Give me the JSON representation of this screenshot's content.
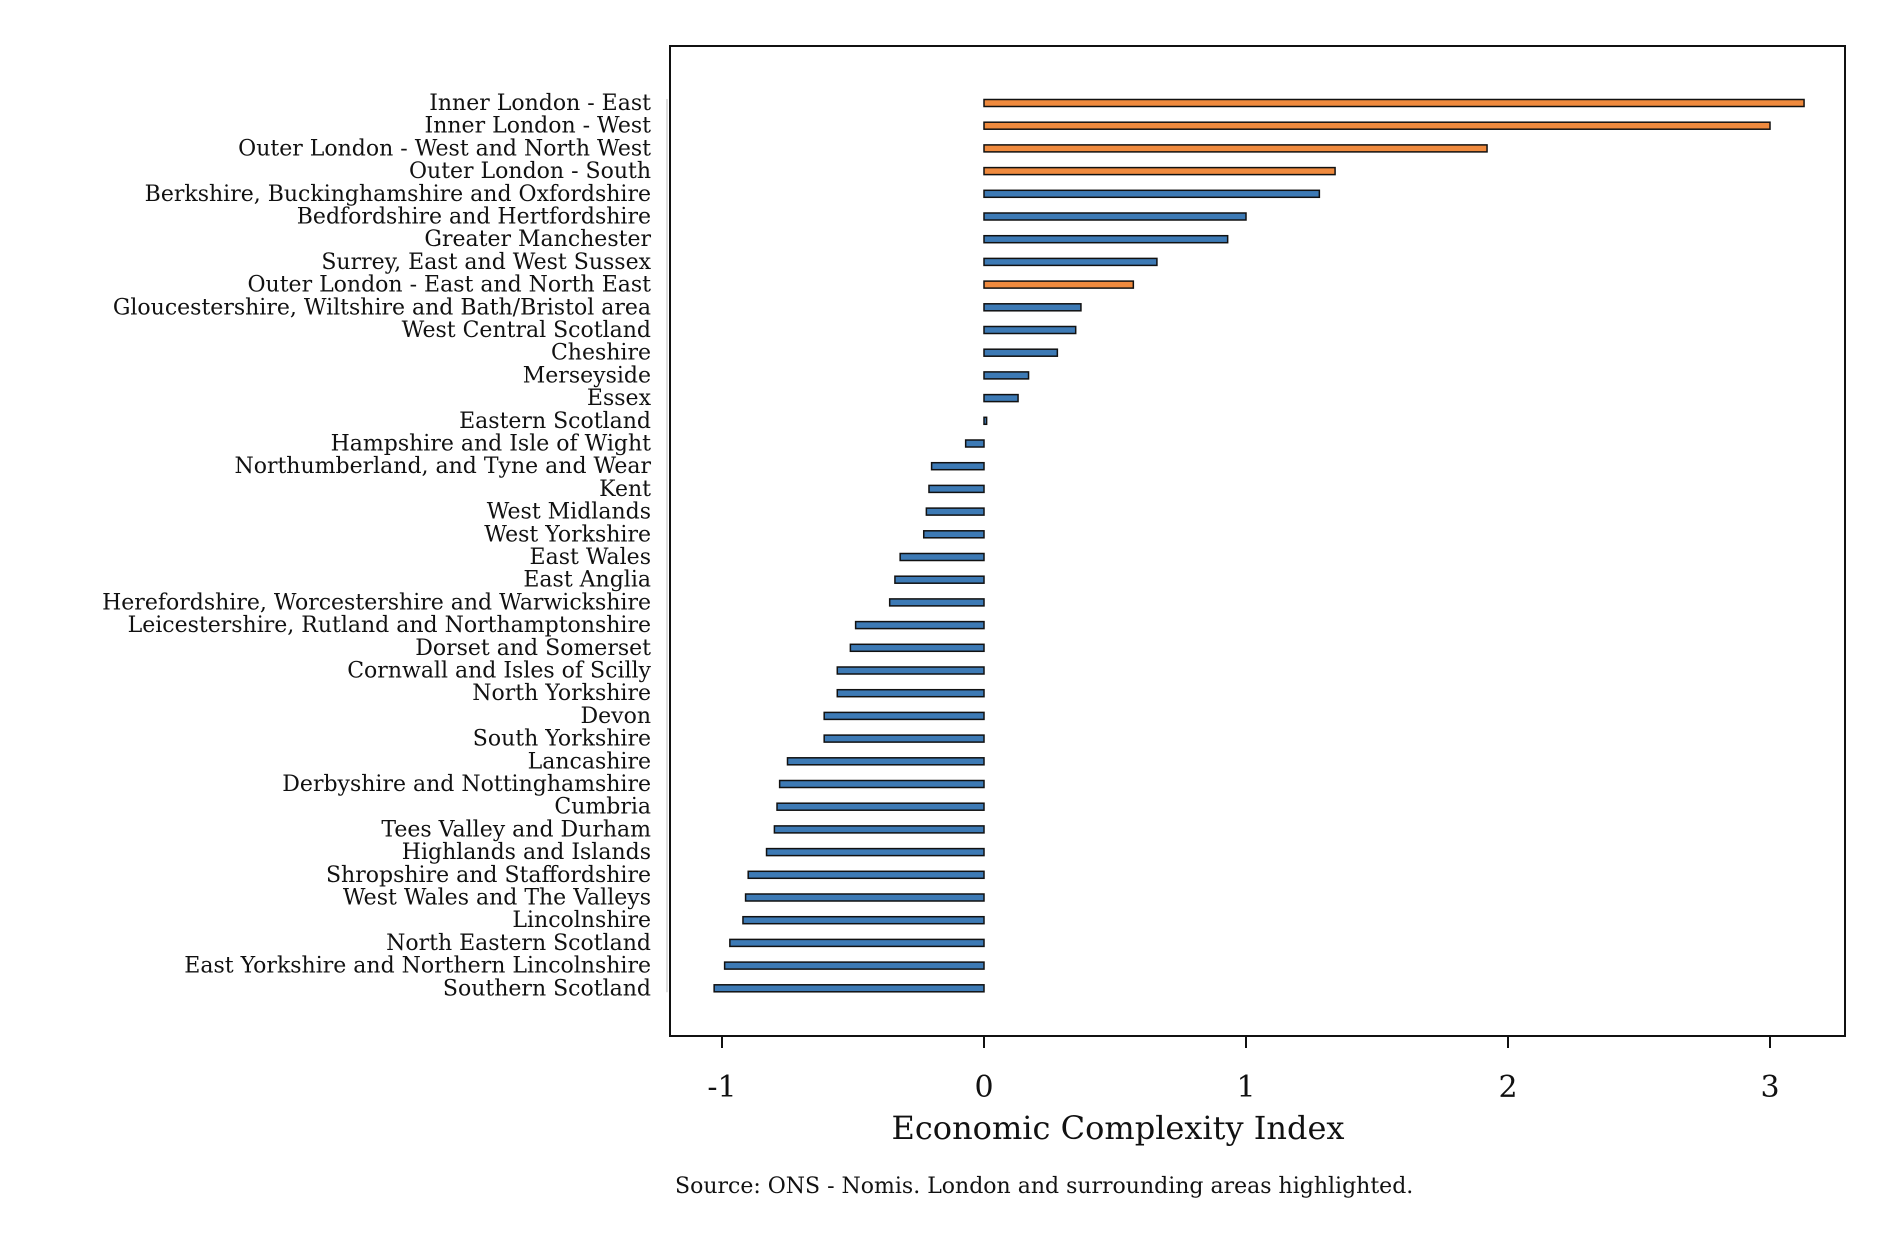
{
  "chart_data": {
    "type": "bar",
    "orientation": "horizontal",
    "xlabel": "Economic Complexity Index",
    "ylabel": "",
    "xlim": [
      -1.2,
      3.3
    ],
    "xticks": [
      -1,
      0,
      1,
      2,
      3
    ],
    "grid": false,
    "legend": "none",
    "colors": {
      "highlight": "#ef8a3e",
      "default": "#3d7ab5",
      "edge": "#111111"
    },
    "categories": [
      "Inner London - East",
      "Inner London - West",
      "Outer London - West and North West",
      "Outer London - South",
      "Berkshire, Buckinghamshire and Oxfordshire",
      "Bedfordshire and Hertfordshire",
      "Greater Manchester",
      "Surrey, East and West Sussex",
      "Outer London - East and North East",
      "Gloucestershire, Wiltshire and Bath/Bristol area",
      "West Central Scotland",
      "Cheshire",
      "Merseyside",
      "Essex",
      "Eastern Scotland",
      "Hampshire and Isle of Wight",
      "Northumberland, and Tyne and Wear",
      "Kent",
      "West Midlands",
      "West Yorkshire",
      "East Wales",
      "East Anglia",
      "Herefordshire, Worcestershire and Warwickshire",
      "Leicestershire, Rutland and Northamptonshire",
      "Dorset and Somerset",
      "Cornwall and Isles of Scilly",
      "North Yorkshire",
      "Devon",
      "South Yorkshire",
      "Lancashire",
      "Derbyshire and Nottinghamshire",
      "Cumbria",
      "Tees Valley and Durham",
      "Highlands and Islands",
      "Shropshire and Staffordshire",
      "West Wales and The Valleys",
      "Lincolnshire",
      "North Eastern Scotland",
      "East Yorkshire and Northern Lincolnshire",
      "Southern Scotland"
    ],
    "values": [
      3.13,
      3.0,
      1.92,
      1.34,
      1.28,
      1.0,
      0.93,
      0.66,
      0.57,
      0.37,
      0.35,
      0.28,
      0.17,
      0.13,
      0.01,
      -0.07,
      -0.2,
      -0.21,
      -0.22,
      -0.23,
      -0.32,
      -0.34,
      -0.36,
      -0.49,
      -0.51,
      -0.56,
      -0.56,
      -0.61,
      -0.61,
      -0.75,
      -0.78,
      -0.79,
      -0.8,
      -0.83,
      -0.9,
      -0.91,
      -0.92,
      -0.97,
      -0.99,
      -1.03
    ],
    "highlighted": [
      true,
      true,
      true,
      true,
      false,
      false,
      false,
      false,
      true,
      false,
      false,
      false,
      false,
      false,
      false,
      false,
      false,
      false,
      false,
      false,
      false,
      false,
      false,
      false,
      false,
      false,
      false,
      false,
      false,
      false,
      false,
      false,
      false,
      false,
      false,
      false,
      false,
      false,
      false,
      false
    ]
  },
  "source_note": "Source: ONS - Nomis. London and surrounding areas highlighted."
}
